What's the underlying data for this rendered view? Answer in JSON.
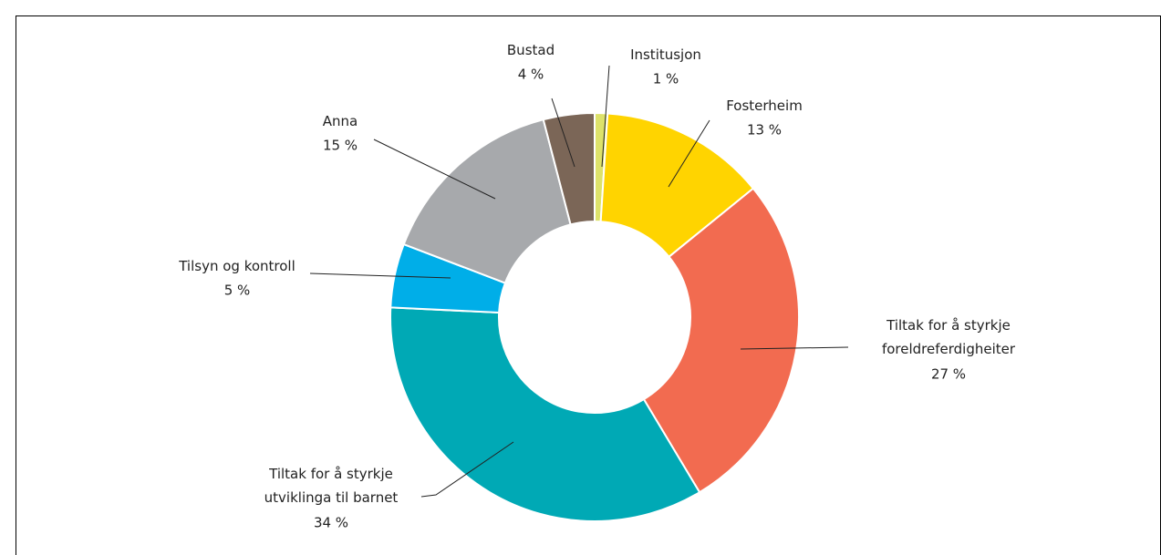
{
  "chart_data": {
    "type": "donut",
    "categories": [
      "Institusjon",
      "Fosterheim",
      "Tiltak for å styrkje foreldreferdigheiter",
      "Tiltak for å styrkje utviklinga til barnet",
      "Tilsyn og kontroll",
      "Anna",
      "Bustad"
    ],
    "values": [
      1,
      13,
      27,
      34,
      5,
      15,
      4
    ],
    "value_labels": [
      "1 %",
      "13 %",
      "27 %",
      "34 %",
      "5 %",
      "15 %",
      "4 %"
    ],
    "colors": [
      "#dde26a",
      "#ffd400",
      "#f26b50",
      "#00a9b5",
      "#00aee8",
      "#a7a9ac",
      "#7b6657"
    ]
  }
}
